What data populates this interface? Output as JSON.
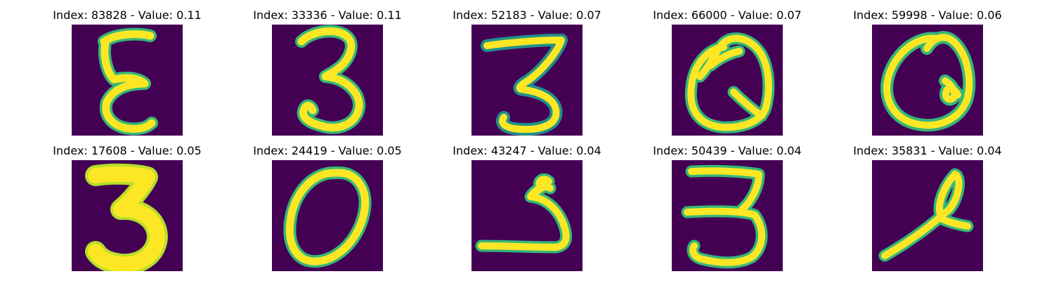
{
  "figure": {
    "background": "#440154",
    "stroke_colors": [
      "#fde725",
      "#b5de2b",
      "#35b779",
      "#21918c"
    ],
    "panels": [
      {
        "title": "Index: 83828 - Value: 0.11",
        "index": 83828,
        "value": 0.11
      },
      {
        "title": "Index: 33336 - Value: 0.11",
        "index": 33336,
        "value": 0.11
      },
      {
        "title": "Index: 52183 - Value: 0.07",
        "index": 52183,
        "value": 0.07
      },
      {
        "title": "Index: 66000 - Value: 0.07",
        "index": 66000,
        "value": 0.07
      },
      {
        "title": "Index: 59998 - Value: 0.06",
        "index": 59998,
        "value": 0.06
      },
      {
        "title": "Index: 17608 - Value: 0.05",
        "index": 17608,
        "value": 0.05
      },
      {
        "title": "Index: 24419 - Value: 0.05",
        "index": 24419,
        "value": 0.05
      },
      {
        "title": "Index: 43247 - Value: 0.04",
        "index": 43247,
        "value": 0.04
      },
      {
        "title": "Index: 50439 - Value: 0.04",
        "index": 50439,
        "value": 0.04
      },
      {
        "title": "Index: 35831 - Value: 0.04",
        "index": 35831,
        "value": 0.04
      }
    ]
  }
}
